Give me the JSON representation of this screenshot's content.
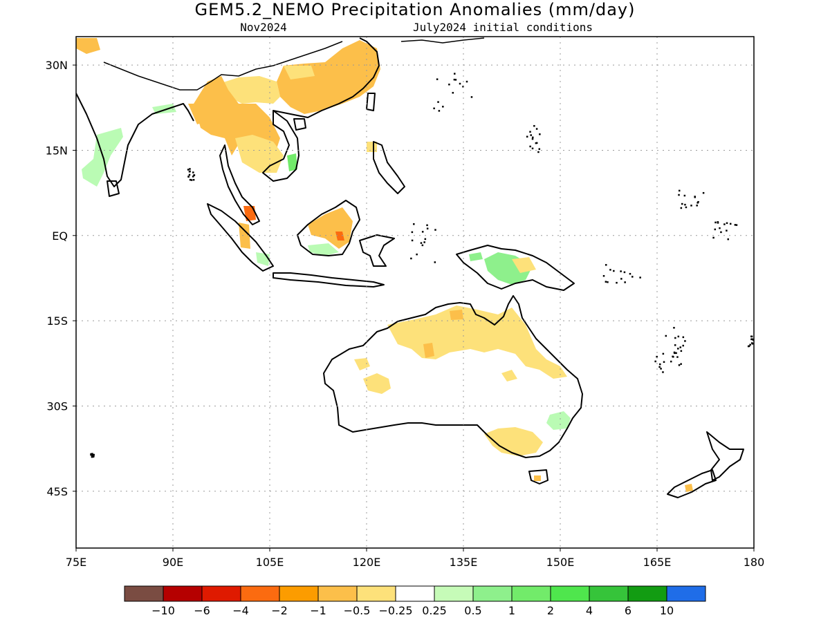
{
  "title": "GEM5.2_NEMO Precipitation Anomalies (mm/day)",
  "subtitle_left": "Nov2024",
  "subtitle_right": "July2024 initial conditions",
  "map": {
    "lon_range": [
      75,
      180
    ],
    "lat_range": [
      -55,
      35
    ],
    "lon_ticks": [
      {
        "value": 75,
        "label": "75E"
      },
      {
        "value": 90,
        "label": "90E"
      },
      {
        "value": 105,
        "label": "105E"
      },
      {
        "value": 120,
        "label": "120E"
      },
      {
        "value": 135,
        "label": "135E"
      },
      {
        "value": 150,
        "label": "150E"
      },
      {
        "value": 165,
        "label": "165E"
      },
      {
        "value": 180,
        "label": "180"
      }
    ],
    "lat_ticks": [
      {
        "value": 30,
        "label": "30N"
      },
      {
        "value": 15,
        "label": "15N"
      },
      {
        "value": 0,
        "label": "EQ"
      },
      {
        "value": -15,
        "label": "15S"
      },
      {
        "value": -30,
        "label": "30S"
      },
      {
        "value": -45,
        "label": "45S"
      }
    ],
    "grid": "dotted",
    "land_color": "#ffffff",
    "coast_color": "#000000",
    "anomaly_regions": [
      {
        "name": "northern-australia",
        "category": "-0.5",
        "color": "#fde17a"
      },
      {
        "name": "southeast-china",
        "category": "-1",
        "color": "#fcbf4a"
      },
      {
        "name": "indochina",
        "category": "-1",
        "color": "#fcbf4a"
      },
      {
        "name": "borneo",
        "category": "-1",
        "color": "#fcbf4a"
      },
      {
        "name": "malaya",
        "category": "-4",
        "color": "#fb6b10"
      },
      {
        "name": "new-guinea",
        "category": "0.5",
        "color": "#8ef08c"
      },
      {
        "name": "southeast-australia",
        "category": "0.5",
        "color": "#bafbb4"
      },
      {
        "name": "india-west-coast",
        "category": "0.5",
        "color": "#bafbb4"
      }
    ]
  },
  "colorbar": {
    "colors": [
      "#7a4c42",
      "#b50000",
      "#df1a00",
      "#fb6b10",
      "#fc9c00",
      "#fcbf4a",
      "#fde17a",
      "#ffffff",
      "#c6fbb8",
      "#8ef08c",
      "#72eb6a",
      "#4fe64d",
      "#36c43a",
      "#129c12",
      "#1f6de8"
    ],
    "labels": [
      "−10",
      "−6",
      "−4",
      "−2",
      "−1",
      "−0.5",
      "−0.25",
      "0.25",
      "0.5",
      "1",
      "2",
      "4",
      "6",
      "10"
    ]
  }
}
